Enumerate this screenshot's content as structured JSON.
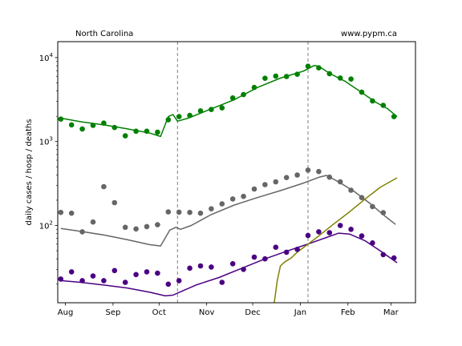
{
  "header": {
    "left_text": "North Carolina",
    "right_text": "www.pypm.ca"
  },
  "chart_data": {
    "type": "scatter",
    "title": "",
    "xlabel": "",
    "ylabel": "daily cases / hosp / deaths",
    "yscale": "log",
    "xlim": [
      -5,
      228
    ],
    "ylim": [
      12,
      15500
    ],
    "grid": false,
    "legend": "none",
    "x_unit": "day offset from Aug 1",
    "x_ticks": [
      {
        "x": 0,
        "label": "Aug"
      },
      {
        "x": 31,
        "label": "Sep"
      },
      {
        "x": 61,
        "label": "Oct"
      },
      {
        "x": 92,
        "label": "Nov"
      },
      {
        "x": 122,
        "label": "Dec"
      },
      {
        "x": 153,
        "label": "Jan"
      },
      {
        "x": 184,
        "label": "Feb"
      },
      {
        "x": 212,
        "label": "Mar"
      }
    ],
    "y_ticks": [
      {
        "value": 100,
        "base": "10",
        "exp": "2"
      },
      {
        "value": 1000,
        "base": "10",
        "exp": "3"
      },
      {
        "value": 10000,
        "base": "10",
        "exp": "4"
      }
    ],
    "vlines": [
      73,
      158
    ],
    "series": [
      {
        "role": "cases",
        "color": "#008000",
        "points": [
          [
            -3,
            1850
          ],
          [
            4,
            1580
          ],
          [
            11,
            1410
          ],
          [
            18,
            1560
          ],
          [
            25,
            1660
          ],
          [
            32,
            1470
          ],
          [
            39,
            1170
          ],
          [
            46,
            1330
          ],
          [
            53,
            1330
          ],
          [
            60,
            1290
          ],
          [
            67,
            1820
          ],
          [
            74,
            1980
          ],
          [
            81,
            2050
          ],
          [
            88,
            2320
          ],
          [
            95,
            2410
          ],
          [
            102,
            2520
          ],
          [
            109,
            3310
          ],
          [
            116,
            3630
          ],
          [
            123,
            4410
          ],
          [
            130,
            5680
          ],
          [
            137,
            6030
          ],
          [
            144,
            5960
          ],
          [
            151,
            6340
          ],
          [
            158,
            7890
          ],
          [
            165,
            7560
          ],
          [
            172,
            6430
          ],
          [
            179,
            5710
          ],
          [
            186,
            5550
          ],
          [
            193,
            3870
          ],
          [
            200,
            3050
          ],
          [
            207,
            2700
          ],
          [
            214,
            1980
          ]
        ],
        "model": [
          [
            -3,
            1900
          ],
          [
            10,
            1720
          ],
          [
            25,
            1580
          ],
          [
            40,
            1420
          ],
          [
            55,
            1260
          ],
          [
            62,
            1150
          ],
          [
            67,
            1980
          ],
          [
            70,
            2100
          ],
          [
            73,
            1750
          ],
          [
            80,
            1900
          ],
          [
            95,
            2450
          ],
          [
            110,
            3150
          ],
          [
            125,
            4400
          ],
          [
            140,
            5700
          ],
          [
            155,
            6900
          ],
          [
            162,
            8050
          ],
          [
            165,
            7900
          ],
          [
            172,
            6500
          ],
          [
            182,
            5250
          ],
          [
            192,
            3950
          ],
          [
            202,
            2950
          ],
          [
            210,
            2450
          ],
          [
            216,
            1980
          ]
        ]
      },
      {
        "role": "hospitalized",
        "color": "#666666",
        "points": [
          [
            -3,
            143
          ],
          [
            4,
            140
          ],
          [
            11,
            84
          ],
          [
            18,
            110
          ],
          [
            25,
            290
          ],
          [
            32,
            187
          ],
          [
            39,
            95
          ],
          [
            46,
            91
          ],
          [
            53,
            97
          ],
          [
            60,
            102
          ],
          [
            67,
            145
          ],
          [
            74,
            144
          ],
          [
            81,
            143
          ],
          [
            88,
            140
          ],
          [
            95,
            158
          ],
          [
            102,
            181
          ],
          [
            109,
            207
          ],
          [
            116,
            222
          ],
          [
            123,
            272
          ],
          [
            130,
            307
          ],
          [
            137,
            331
          ],
          [
            144,
            372
          ],
          [
            151,
            399
          ],
          [
            158,
            457
          ],
          [
            165,
            439
          ],
          [
            172,
            376
          ],
          [
            179,
            331
          ],
          [
            186,
            263
          ],
          [
            193,
            215
          ],
          [
            200,
            168
          ],
          [
            207,
            142
          ]
        ],
        "model": [
          [
            -3,
            92
          ],
          [
            10,
            85
          ],
          [
            25,
            77
          ],
          [
            40,
            68
          ],
          [
            55,
            59
          ],
          [
            62,
            57
          ],
          [
            68,
            88
          ],
          [
            72,
            95
          ],
          [
            75,
            90
          ],
          [
            82,
            100
          ],
          [
            95,
            135
          ],
          [
            110,
            175
          ],
          [
            125,
            215
          ],
          [
            140,
            260
          ],
          [
            155,
            320
          ],
          [
            165,
            375
          ],
          [
            170,
            395
          ],
          [
            178,
            330
          ],
          [
            188,
            255
          ],
          [
            198,
            185
          ],
          [
            208,
            130
          ],
          [
            215,
            103
          ]
        ]
      },
      {
        "role": "deaths",
        "color": "#4b0082",
        "points": [
          [
            -3,
            23
          ],
          [
            4,
            28
          ],
          [
            11,
            22
          ],
          [
            18,
            25
          ],
          [
            25,
            22
          ],
          [
            32,
            29
          ],
          [
            39,
            21
          ],
          [
            46,
            26
          ],
          [
            53,
            28
          ],
          [
            60,
            27
          ],
          [
            67,
            20
          ],
          [
            74,
            22
          ],
          [
            81,
            31
          ],
          [
            88,
            33
          ],
          [
            95,
            32
          ],
          [
            102,
            21
          ],
          [
            109,
            35
          ],
          [
            116,
            30
          ],
          [
            123,
            42
          ],
          [
            130,
            40
          ],
          [
            137,
            55
          ],
          [
            144,
            48
          ],
          [
            151,
            52
          ],
          [
            158,
            76
          ],
          [
            165,
            84
          ],
          [
            172,
            82
          ],
          [
            179,
            100
          ],
          [
            186,
            90
          ],
          [
            193,
            75
          ],
          [
            200,
            62
          ],
          [
            207,
            45
          ],
          [
            214,
            41
          ]
        ],
        "model": [
          [
            -3,
            22
          ],
          [
            10,
            21
          ],
          [
            25,
            19.5
          ],
          [
            40,
            18
          ],
          [
            55,
            16
          ],
          [
            65,
            14.5
          ],
          [
            70,
            14.8
          ],
          [
            75,
            16.2
          ],
          [
            85,
            19.5
          ],
          [
            100,
            24
          ],
          [
            115,
            31
          ],
          [
            130,
            40
          ],
          [
            145,
            50
          ],
          [
            160,
            62
          ],
          [
            170,
            72
          ],
          [
            178,
            81
          ],
          [
            185,
            79
          ],
          [
            195,
            66
          ],
          [
            205,
            50
          ],
          [
            216,
            36
          ]
        ]
      },
      {
        "role": "projection",
        "color": "#808000",
        "model": [
          [
            136,
            12
          ],
          [
            138,
            22
          ],
          [
            140,
            33
          ],
          [
            143,
            37
          ],
          [
            147,
            41
          ],
          [
            151,
            48
          ],
          [
            158,
            60
          ],
          [
            165,
            75
          ],
          [
            175,
            105
          ],
          [
            185,
            145
          ],
          [
            195,
            205
          ],
          [
            205,
            285
          ],
          [
            216,
            370
          ]
        ]
      }
    ]
  }
}
